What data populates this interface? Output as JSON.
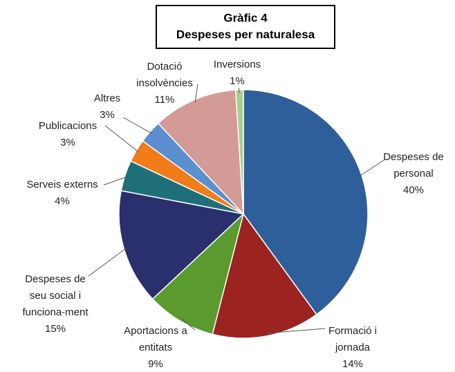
{
  "chart_data": {
    "type": "pie",
    "title": [
      "Gràfic 4",
      "Despeses per naturalesa"
    ],
    "categories": [
      [
        "Despeses de",
        "personal"
      ],
      [
        "Formació i",
        "jornada"
      ],
      [
        "Aportacions a",
        "entitats"
      ],
      [
        "Despeses de",
        "seu social i",
        "funciona-ment"
      ],
      [
        "Serveis externs"
      ],
      [
        "Publicacions"
      ],
      [
        "Altres"
      ],
      [
        "Dotació",
        "insolvències"
      ],
      [
        "Inversions"
      ]
    ],
    "values": [
      40,
      14,
      9,
      15,
      4,
      3,
      3,
      11,
      1
    ],
    "value_labels": [
      "40%",
      "14%",
      "9%",
      "15%",
      "4%",
      "3%",
      "3%",
      "11%",
      "1%"
    ],
    "colors": [
      "#2e5f9a",
      "#9b2320",
      "#5a9a2e",
      "#2a2f6e",
      "#1f6f7a",
      "#f07c1a",
      "#5b8fd0",
      "#d49a96",
      "#a8d08d"
    ]
  }
}
